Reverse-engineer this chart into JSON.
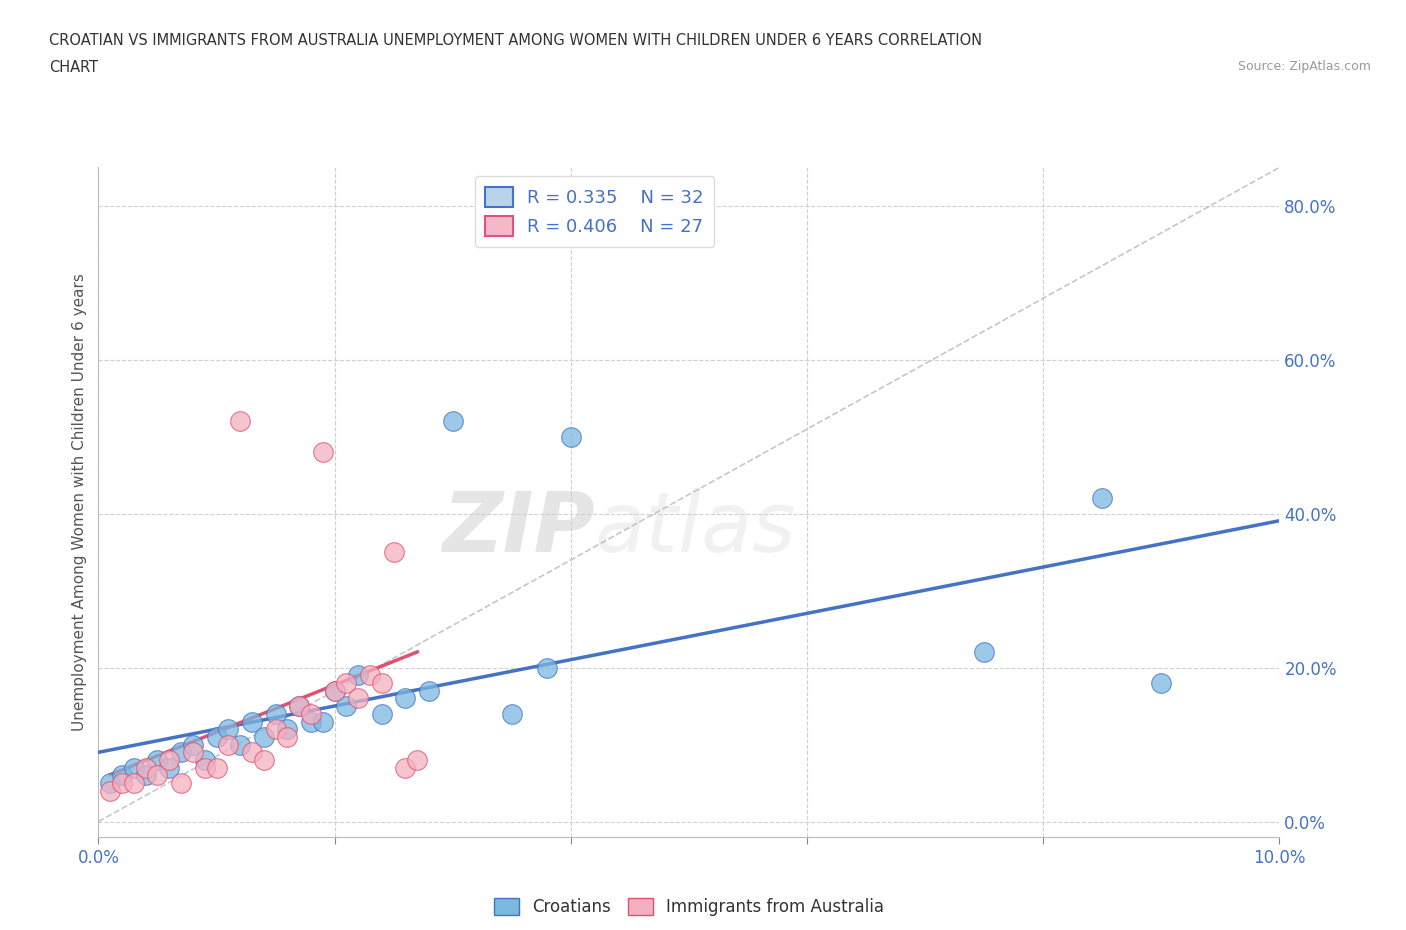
{
  "title_line1": "CROATIAN VS IMMIGRANTS FROM AUSTRALIA UNEMPLOYMENT AMONG WOMEN WITH CHILDREN UNDER 6 YEARS CORRELATION",
  "title_line2": "CHART",
  "source": "Source: ZipAtlas.com",
  "ylabel": "Unemployment Among Women with Children Under 6 years",
  "xlim": [
    0.0,
    0.1
  ],
  "ylim": [
    -0.02,
    0.85
  ],
  "ytick_values": [
    0.0,
    0.2,
    0.4,
    0.6,
    0.8
  ],
  "xtick_values": [
    0.0,
    0.02,
    0.04,
    0.06,
    0.08,
    0.1
  ],
  "watermark_zip": "ZIP",
  "watermark_atlas": "atlas",
  "legend_entries": [
    {
      "color": "#b8d4ea",
      "edge_color": "#4472c4",
      "R": 0.335,
      "N": 32
    },
    {
      "color": "#f4b8c8",
      "edge_color": "#e05080",
      "R": 0.406,
      "N": 27
    }
  ],
  "croatians_x": [
    0.001,
    0.002,
    0.003,
    0.004,
    0.005,
    0.006,
    0.007,
    0.008,
    0.009,
    0.01,
    0.011,
    0.012,
    0.013,
    0.014,
    0.015,
    0.016,
    0.017,
    0.018,
    0.019,
    0.02,
    0.021,
    0.022,
    0.024,
    0.026,
    0.028,
    0.03,
    0.035,
    0.038,
    0.04,
    0.075,
    0.085,
    0.09
  ],
  "croatians_y": [
    0.05,
    0.06,
    0.07,
    0.06,
    0.08,
    0.07,
    0.09,
    0.1,
    0.08,
    0.11,
    0.12,
    0.1,
    0.13,
    0.11,
    0.14,
    0.12,
    0.15,
    0.13,
    0.13,
    0.17,
    0.15,
    0.19,
    0.14,
    0.16,
    0.17,
    0.52,
    0.14,
    0.2,
    0.5,
    0.22,
    0.42,
    0.18
  ],
  "australia_x": [
    0.001,
    0.002,
    0.003,
    0.004,
    0.005,
    0.006,
    0.007,
    0.008,
    0.009,
    0.01,
    0.011,
    0.012,
    0.013,
    0.014,
    0.015,
    0.016,
    0.017,
    0.018,
    0.019,
    0.02,
    0.021,
    0.022,
    0.023,
    0.024,
    0.025,
    0.026,
    0.027
  ],
  "australia_y": [
    0.04,
    0.05,
    0.05,
    0.07,
    0.06,
    0.08,
    0.05,
    0.09,
    0.07,
    0.07,
    0.1,
    0.52,
    0.09,
    0.08,
    0.12,
    0.11,
    0.15,
    0.14,
    0.48,
    0.17,
    0.18,
    0.16,
    0.19,
    0.18,
    0.35,
    0.07,
    0.08
  ],
  "croatian_color": "#7ab8e0",
  "australia_color": "#f4b0c0",
  "trendline_croatian_color": "#4472c4",
  "trendline_australia_color": "#e05070",
  "diagonal_color": "#c0c0c0",
  "background_color": "#ffffff",
  "grid_color": "#d0d0d0"
}
